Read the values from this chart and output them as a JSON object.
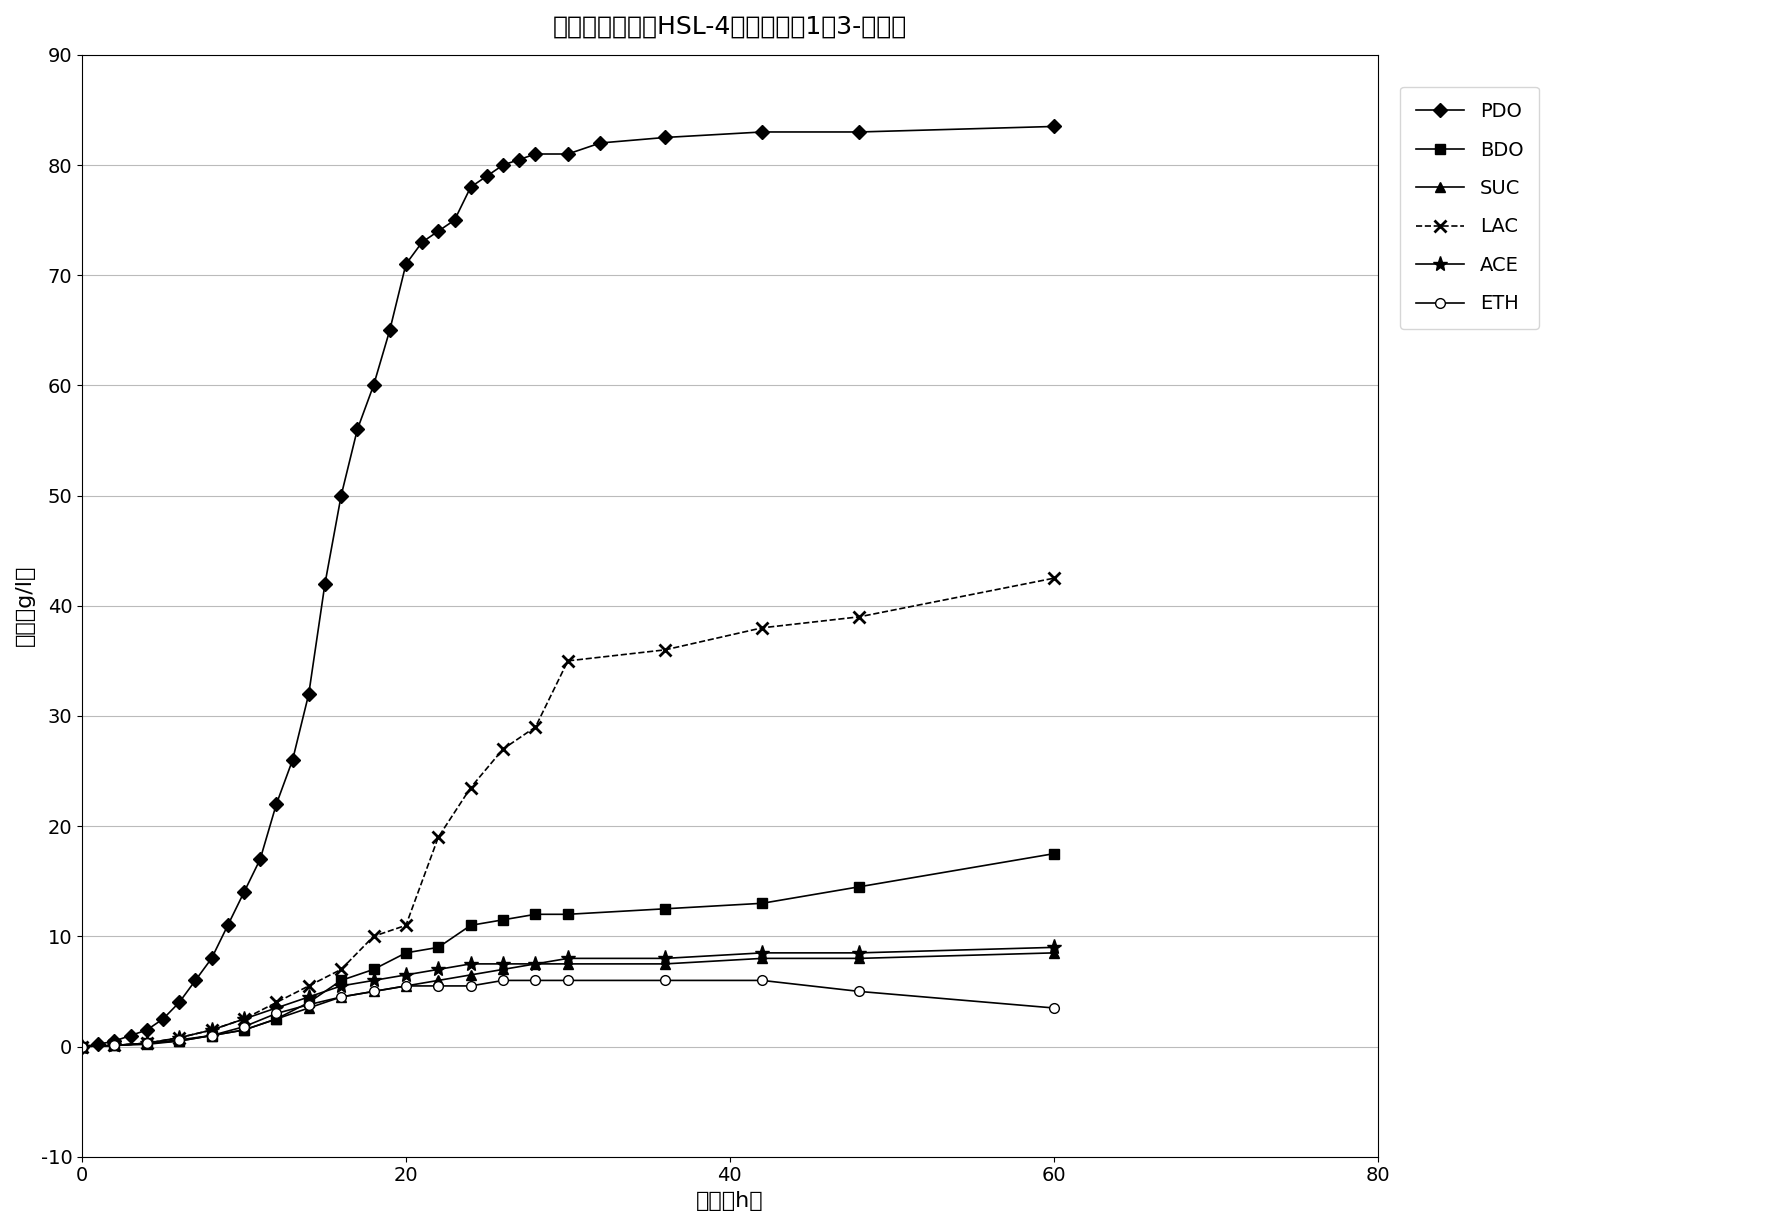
{
  "title": "肺炎克雷伯氏菌HSL-4发酵甘油产1，3-丙二醇",
  "xlabel": "时间（h）",
  "ylabel": "浓度（g/l）",
  "xlim": [
    0,
    80
  ],
  "ylim": [
    -10,
    90
  ],
  "xticks": [
    0,
    20,
    40,
    60,
    80
  ],
  "yticks": [
    -10,
    0,
    10,
    20,
    30,
    40,
    50,
    60,
    70,
    80,
    90
  ],
  "PDO": {
    "x": [
      0,
      1,
      2,
      3,
      4,
      5,
      6,
      7,
      8,
      9,
      10,
      11,
      12,
      13,
      14,
      15,
      16,
      17,
      18,
      19,
      20,
      21,
      22,
      23,
      24,
      25,
      26,
      27,
      28,
      30,
      32,
      36,
      42,
      48,
      60
    ],
    "y": [
      0,
      0.2,
      0.5,
      1.0,
      1.5,
      2.5,
      4,
      6,
      8,
      11,
      14,
      17,
      22,
      26,
      32,
      42,
      50,
      56,
      60,
      65,
      71,
      73,
      74,
      75,
      78,
      79,
      80,
      80.5,
      81,
      81,
      82,
      82.5,
      83,
      83,
      83.5
    ],
    "label": "PDO",
    "marker": "D",
    "linestyle": "-",
    "color": "#000000",
    "markersize": 7,
    "markerfacecolor": "#000000"
  },
  "BDO": {
    "x": [
      0,
      2,
      4,
      6,
      8,
      10,
      12,
      14,
      16,
      18,
      20,
      22,
      24,
      26,
      28,
      30,
      36,
      42,
      48,
      60
    ],
    "y": [
      0,
      0.1,
      0.3,
      0.5,
      1.0,
      1.5,
      2.5,
      4,
      6,
      7,
      8.5,
      9,
      11,
      11.5,
      12,
      12,
      12.5,
      13,
      14.5,
      17.5
    ],
    "label": "BDO",
    "marker": "s",
    "linestyle": "-",
    "color": "#000000",
    "markersize": 7,
    "markerfacecolor": "#000000"
  },
  "SUC": {
    "x": [
      0,
      2,
      4,
      6,
      8,
      10,
      12,
      14,
      16,
      18,
      20,
      22,
      24,
      26,
      28,
      30,
      36,
      42,
      48,
      60
    ],
    "y": [
      0,
      0.1,
      0.2,
      0.5,
      1.0,
      1.5,
      2.5,
      3.5,
      4.5,
      5,
      5.5,
      6,
      6.5,
      7,
      7.5,
      7.5,
      7.5,
      8,
      8,
      8.5
    ],
    "label": "SUC",
    "marker": "^",
    "linestyle": "-",
    "color": "#000000",
    "markersize": 7,
    "markerfacecolor": "#000000"
  },
  "LAC": {
    "x": [
      0,
      2,
      4,
      6,
      8,
      10,
      12,
      14,
      16,
      18,
      20,
      22,
      24,
      26,
      28,
      30,
      36,
      42,
      48,
      60
    ],
    "y": [
      0,
      0.1,
      0.3,
      0.8,
      1.5,
      2.5,
      4,
      5.5,
      7,
      10,
      11,
      19,
      23.5,
      27,
      29,
      35,
      36,
      38,
      39,
      42.5
    ],
    "label": "LAC",
    "marker": "x",
    "linestyle": "--",
    "color": "#000000",
    "markersize": 9,
    "markerfacecolor": "#000000",
    "markeredgewidth": 2
  },
  "ACE": {
    "x": [
      0,
      2,
      4,
      6,
      8,
      10,
      12,
      14,
      16,
      18,
      20,
      22,
      24,
      26,
      28,
      30,
      36,
      42,
      48,
      60
    ],
    "y": [
      0,
      0.1,
      0.3,
      0.8,
      1.5,
      2.5,
      3.5,
      4.5,
      5.5,
      6,
      6.5,
      7,
      7.5,
      7.5,
      7.5,
      8,
      8,
      8.5,
      8.5,
      9
    ],
    "label": "ACE",
    "marker": "*",
    "linestyle": "-",
    "color": "#000000",
    "markersize": 11,
    "markerfacecolor": "#000000"
  },
  "ETH": {
    "x": [
      0,
      2,
      4,
      6,
      8,
      10,
      12,
      14,
      16,
      18,
      20,
      22,
      24,
      26,
      28,
      30,
      36,
      42,
      48,
      60
    ],
    "y": [
      0,
      0.1,
      0.3,
      0.6,
      1.0,
      1.8,
      3.0,
      3.8,
      4.5,
      5.0,
      5.5,
      5.5,
      5.5,
      6,
      6,
      6,
      6,
      6,
      5,
      3.5
    ],
    "label": "ETH",
    "marker": "o",
    "linestyle": "-",
    "color": "#000000",
    "markersize": 7,
    "markerfacecolor": "#ffffff"
  },
  "background_color": "#ffffff",
  "title_fontsize": 18,
  "axis_fontsize": 16,
  "tick_fontsize": 14,
  "legend_fontsize": 14
}
